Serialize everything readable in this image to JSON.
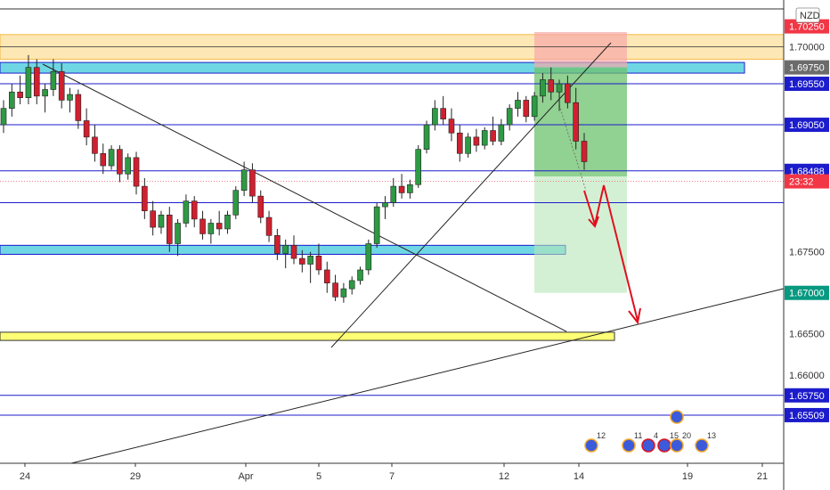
{
  "chart_data": {
    "type": "candlestick",
    "currency_badge": "NZD",
    "yrange": [
      1.649,
      1.7055
    ],
    "ytick_labels": [
      "1.70000",
      "1.67500",
      "1.66500",
      "1.66000"
    ],
    "xtick_labels": [
      "24",
      "29",
      "Apr",
      "5",
      "7",
      "12",
      "14",
      "19",
      "21"
    ],
    "price_labels": [
      {
        "value": 1.7025,
        "text": "1.70250",
        "bg": "#f23645",
        "fg": "#ffffff"
      },
      {
        "value": 1.6975,
        "text": "1.69750",
        "bg": "#6b6b6b",
        "fg": "#ffffff"
      },
      {
        "value": 1.6955,
        "text": "1.69550",
        "bg": "#1c1ccc",
        "fg": "#ffffff"
      },
      {
        "value": 1.6905,
        "text": "1.69050",
        "bg": "#1c1ccc",
        "fg": "#ffffff"
      },
      {
        "value": 1.68488,
        "text": "1.68488",
        "bg": "#1c1ccc",
        "fg": "#ffffff"
      },
      {
        "value": 1.6836,
        "text": "23:32",
        "bg": "#f23645",
        "fg": "#ffffff"
      },
      {
        "value": 1.67,
        "text": "1.67000",
        "bg": "#089981",
        "fg": "#ffffff"
      },
      {
        "value": 1.6575,
        "text": "1.65750",
        "bg": "#1c1ccc",
        "fg": "#ffffff"
      },
      {
        "value": 1.65509,
        "text": "1.65509",
        "bg": "#1c1ccc",
        "fg": "#ffffff"
      }
    ],
    "horizontal_levels": [
      1.6955,
      1.6905,
      1.68488,
      1.681,
      1.6575,
      1.65509
    ],
    "zones": [
      {
        "color": "cyan",
        "from": 1.6968,
        "to": 1.6981
      },
      {
        "color": "cyan",
        "from": 1.6747,
        "to": 1.6758
      },
      {
        "color": "orange",
        "from": 1.6985,
        "to": 1.7015
      },
      {
        "color": "yellow",
        "from": 1.6642,
        "to": 1.6652
      }
    ],
    "event_markers": [
      {
        "label": "12"
      },
      {
        "label": "11"
      },
      {
        "label": "4"
      },
      {
        "label": "15"
      },
      {
        "label": "20"
      },
      {
        "label": "13"
      }
    ],
    "candles": [
      [
        1.6905,
        1.6935,
        1.6895,
        1.6925
      ],
      [
        1.6925,
        1.6955,
        1.6915,
        1.6945
      ],
      [
        1.6945,
        1.6965,
        1.693,
        1.6938
      ],
      [
        1.6938,
        1.699,
        1.693,
        1.6975
      ],
      [
        1.6975,
        1.6985,
        1.693,
        1.694
      ],
      [
        1.694,
        1.6955,
        1.692,
        1.6948
      ],
      [
        1.6948,
        1.6985,
        1.694,
        1.697
      ],
      [
        1.697,
        1.698,
        1.6925,
        1.6935
      ],
      [
        1.6935,
        1.695,
        1.692,
        1.6942
      ],
      [
        1.6942,
        1.6948,
        1.69,
        1.691
      ],
      [
        1.691,
        1.6925,
        1.688,
        1.689
      ],
      [
        1.689,
        1.6905,
        1.686,
        1.687
      ],
      [
        1.687,
        1.6882,
        1.6845,
        1.6855
      ],
      [
        1.6855,
        1.688,
        1.685,
        1.6875
      ],
      [
        1.6875,
        1.688,
        1.6835,
        1.6845
      ],
      [
        1.6845,
        1.687,
        1.6838,
        1.6865
      ],
      [
        1.6865,
        1.6872,
        1.682,
        1.683
      ],
      [
        1.683,
        1.684,
        1.679,
        1.68
      ],
      [
        1.68,
        1.6812,
        1.677,
        1.678
      ],
      [
        1.678,
        1.68,
        1.6772,
        1.6795
      ],
      [
        1.6795,
        1.6805,
        1.675,
        1.676
      ],
      [
        1.676,
        1.679,
        1.6745,
        1.6785
      ],
      [
        1.6785,
        1.682,
        1.678,
        1.6812
      ],
      [
        1.6812,
        1.6818,
        1.678,
        1.679
      ],
      [
        1.679,
        1.68,
        1.6765,
        1.6772
      ],
      [
        1.6772,
        1.679,
        1.676,
        1.6785
      ],
      [
        1.6785,
        1.68,
        1.677,
        1.6778
      ],
      [
        1.6778,
        1.68,
        1.6772,
        1.6795
      ],
      [
        1.6795,
        1.683,
        1.679,
        1.6825
      ],
      [
        1.6825,
        1.686,
        1.6818,
        1.685
      ],
      [
        1.685,
        1.6858,
        1.681,
        1.6818
      ],
      [
        1.6818,
        1.6825,
        1.6785,
        1.6792
      ],
      [
        1.6792,
        1.68,
        1.6762,
        1.677
      ],
      [
        1.677,
        1.6778,
        1.674,
        1.6748
      ],
      [
        1.6748,
        1.6765,
        1.673,
        1.6758
      ],
      [
        1.6758,
        1.677,
        1.6735,
        1.6742
      ],
      [
        1.6742,
        1.6752,
        1.6725,
        1.6735
      ],
      [
        1.6735,
        1.675,
        1.6712,
        1.6745
      ],
      [
        1.6745,
        1.676,
        1.6722,
        1.6728
      ],
      [
        1.6728,
        1.6738,
        1.67,
        1.6712
      ],
      [
        1.6712,
        1.6722,
        1.669,
        1.6695
      ],
      [
        1.6695,
        1.6712,
        1.6688,
        1.6705
      ],
      [
        1.6705,
        1.672,
        1.6698,
        1.6715
      ],
      [
        1.6715,
        1.6732,
        1.671,
        1.6728
      ],
      [
        1.6728,
        1.6765,
        1.6722,
        1.676
      ],
      [
        1.676,
        1.681,
        1.6755,
        1.6805
      ],
      [
        1.6805,
        1.6818,
        1.679,
        1.681
      ],
      [
        1.681,
        1.684,
        1.6805,
        1.683
      ],
      [
        1.683,
        1.6845,
        1.6815,
        1.6822
      ],
      [
        1.6822,
        1.6838,
        1.6815,
        1.6832
      ],
      [
        1.6832,
        1.688,
        1.6828,
        1.6875
      ],
      [
        1.6875,
        1.691,
        1.687,
        1.6905
      ],
      [
        1.6905,
        1.6935,
        1.6898,
        1.6925
      ],
      [
        1.6925,
        1.694,
        1.6905,
        1.6912
      ],
      [
        1.6912,
        1.6925,
        1.6885,
        1.6895
      ],
      [
        1.6895,
        1.6905,
        1.686,
        1.687
      ],
      [
        1.687,
        1.6895,
        1.6865,
        1.689
      ],
      [
        1.689,
        1.69,
        1.6872,
        1.688
      ],
      [
        1.688,
        1.6902,
        1.6875,
        1.6898
      ],
      [
        1.6898,
        1.6915,
        1.688,
        1.6885
      ],
      [
        1.6885,
        1.6912,
        1.688,
        1.6905
      ],
      [
        1.6905,
        1.693,
        1.6898,
        1.6925
      ],
      [
        1.6925,
        1.6945,
        1.6915,
        1.6935
      ],
      [
        1.6935,
        1.694,
        1.6908,
        1.6915
      ],
      [
        1.6915,
        1.6945,
        1.691,
        1.694
      ],
      [
        1.694,
        1.6968,
        1.6932,
        1.696
      ],
      [
        1.696,
        1.6975,
        1.6935,
        1.6945
      ],
      [
        1.6945,
        1.696,
        1.6922,
        1.6955
      ],
      [
        1.6955,
        1.6965,
        1.6925,
        1.6932
      ],
      [
        1.6932,
        1.695,
        1.6875,
        1.6885
      ],
      [
        1.6885,
        1.6895,
        1.685,
        1.686
      ]
    ]
  }
}
